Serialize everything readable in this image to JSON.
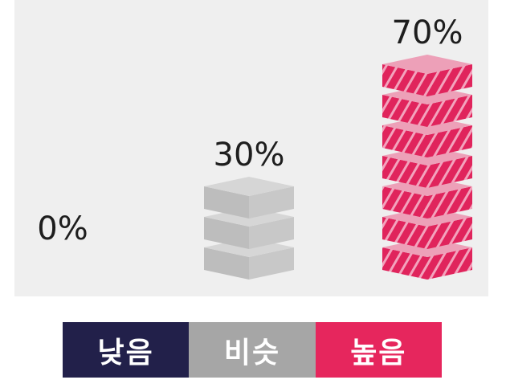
{
  "chart_data": {
    "type": "bar",
    "style": "stacked 3D blocks, one block per 10%",
    "categories": [
      "낮음",
      "비슷",
      "높음"
    ],
    "values": [
      0,
      30,
      70
    ],
    "value_labels": [
      "0%",
      "30%",
      "70%"
    ],
    "colors": [
      "#22204a",
      "#a6a6a6",
      "#e6265d"
    ],
    "legend": {
      "placement": "bottom",
      "entries": [
        "낮음",
        "비슷",
        "높음"
      ]
    },
    "grid": false
  }
}
